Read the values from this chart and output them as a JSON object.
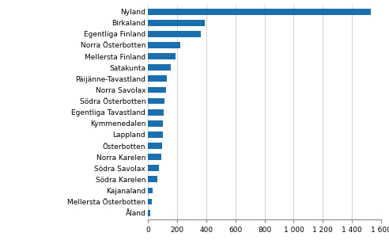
{
  "categories": [
    "Åland",
    "Mellersta Österbotten",
    "Kajanaland",
    "Södra Karelen",
    "Södra Savolax",
    "Norra Karelen",
    "Österbotten",
    "Lappland",
    "Kymmenedalen",
    "Egentliga Tavastland",
    "Södra Österbotten",
    "Norra Savolax",
    "Päijänne-Tavastland",
    "Satakunta",
    "Mellersta Finland",
    "Norra Österbotten",
    "Egentliga Finland",
    "Birkaland",
    "Nyland"
  ],
  "values": [
    18,
    28,
    35,
    65,
    75,
    95,
    100,
    102,
    105,
    110,
    115,
    125,
    130,
    160,
    190,
    220,
    365,
    390,
    1530
  ],
  "bar_color": "#1a6faf",
  "xlim": [
    0,
    1600
  ],
  "xticks": [
    0,
    200,
    400,
    600,
    800,
    1000,
    1200,
    1400,
    1600
  ],
  "xtick_labels": [
    "0",
    "200",
    "400",
    "600",
    "800",
    "1 000",
    "1 200",
    "1 400",
    "1 600"
  ],
  "background_color": "#ffffff",
  "grid_color": "#cccccc",
  "label_fontsize": 6.5,
  "tick_fontsize": 6.5
}
